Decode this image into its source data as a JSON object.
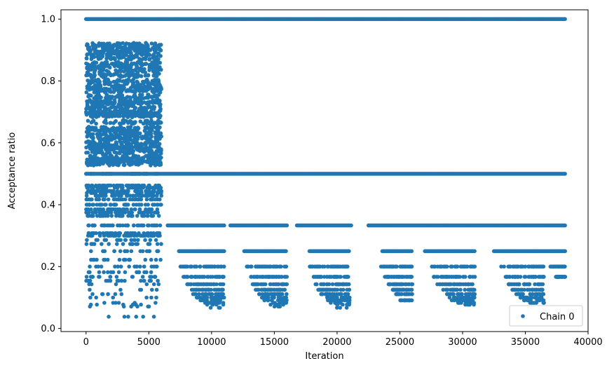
{
  "chart_data": {
    "type": "scatter",
    "title": "",
    "xlabel": "Iteration",
    "ylabel": "Acceptance ratio",
    "xlim": [
      -2000,
      40000
    ],
    "ylim": [
      -0.01,
      1.03
    ],
    "xticks": [
      0,
      5000,
      10000,
      15000,
      20000,
      25000,
      30000,
      35000,
      40000
    ],
    "xtick_labels": [
      "0",
      "5000",
      "10000",
      "15000",
      "20000",
      "25000",
      "30000",
      "35000",
      "40000"
    ],
    "yticks": [
      0.0,
      0.2,
      0.4,
      0.6,
      0.8,
      1.0
    ],
    "ytick_labels": [
      "0.0",
      "0.2",
      "0.4",
      "0.6",
      "0.8",
      "1.0"
    ],
    "grid": false,
    "legend": {
      "placement": "lower-right",
      "entries": [
        "Chain 0"
      ]
    },
    "marker_color": "#1f77b4",
    "series": [
      {
        "name": "Chain 0",
        "marker": "circle",
        "color": "#1f77b4",
        "runs": [
          {
            "x_start": 0,
            "x_end": 38200,
            "y": 1.0
          },
          {
            "x_start": 0,
            "x_end": 38200,
            "y": 0.5
          },
          {
            "x_start": 6500,
            "x_end": 11000,
            "y": 0.333
          },
          {
            "x_start": 11500,
            "x_end": 16000,
            "y": 0.333
          },
          {
            "x_start": 16800,
            "x_end": 21200,
            "y": 0.333
          },
          {
            "x_start": 22500,
            "x_end": 38200,
            "y": 0.333
          },
          {
            "x_start": 7400,
            "x_end": 11000,
            "y": 0.25
          },
          {
            "x_start": 12600,
            "x_end": 16000,
            "y": 0.25
          },
          {
            "x_start": 17800,
            "x_end": 21000,
            "y": 0.25
          },
          {
            "x_start": 23600,
            "x_end": 26000,
            "y": 0.25
          },
          {
            "x_start": 27000,
            "x_end": 31000,
            "y": 0.25
          },
          {
            "x_start": 32500,
            "x_end": 38200,
            "y": 0.25
          }
        ],
        "dense_region": {
          "x_start": 0,
          "x_end": 6000,
          "bands": [
            0.917,
            0.909,
            0.9,
            0.889,
            0.875,
            0.857,
            0.846,
            0.833,
            0.818,
            0.8,
            0.786,
            0.778,
            0.769,
            0.75,
            0.733,
            0.727,
            0.714,
            0.7,
            0.692,
            0.688,
            0.667,
            0.647,
            0.636,
            0.625,
            0.615,
            0.6,
            0.588,
            0.583,
            0.571,
            0.556,
            0.545,
            0.538,
            0.533,
            0.5,
            0.462,
            0.455,
            0.444,
            0.438,
            0.429,
            0.417,
            0.4,
            0.385,
            0.375,
            0.364,
            0.333,
            0.308,
            0.3,
            0.286,
            0.273,
            0.25,
            0.222,
            0.2,
            0.182,
            0.167,
            0.154,
            0.143,
            0.125,
            0.111,
            0.1,
            0.083,
            0.077,
            0.071,
            0.038
          ],
          "approx_points_per_band": 60
        },
        "clusters": [
          {
            "x_start": 7500,
            "x_end": 11000,
            "y_values": [
              0.2,
              0.167,
              0.143,
              0.125,
              0.111,
              0.1,
              0.091,
              0.083,
              0.077,
              0.067
            ]
          },
          {
            "x_start": 12800,
            "x_end": 16000,
            "y_values": [
              0.2,
              0.167,
              0.143,
              0.125,
              0.111,
              0.1,
              0.091,
              0.083,
              0.077,
              0.071
            ]
          },
          {
            "x_start": 17800,
            "x_end": 21000,
            "y_values": [
              0.2,
              0.167,
              0.143,
              0.125,
              0.111,
              0.1,
              0.091,
              0.083,
              0.077,
              0.067
            ]
          },
          {
            "x_start": 23500,
            "x_end": 26000,
            "y_values": [
              0.2,
              0.167,
              0.143,
              0.125,
              0.111,
              0.091
            ]
          },
          {
            "x_start": 27400,
            "x_end": 31000,
            "y_values": [
              0.2,
              0.167,
              0.143,
              0.125,
              0.111,
              0.1,
              0.091,
              0.083,
              0.077
            ]
          },
          {
            "x_start": 33000,
            "x_end": 36500,
            "y_values": [
              0.2,
              0.167,
              0.143,
              0.125,
              0.111,
              0.1,
              0.091,
              0.083
            ]
          },
          {
            "x_start": 37000,
            "x_end": 38200,
            "y_values": [
              0.2,
              0.167
            ]
          }
        ]
      }
    ]
  }
}
